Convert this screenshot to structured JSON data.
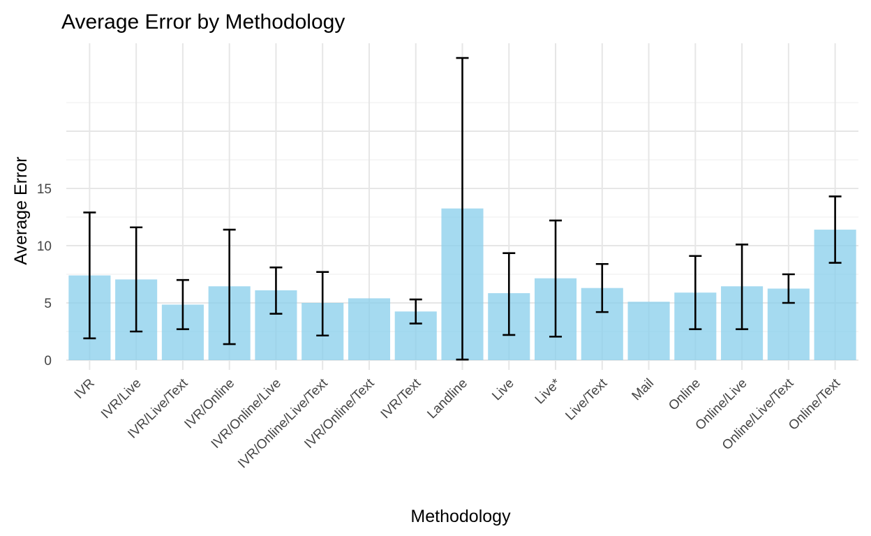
{
  "chart_data": {
    "type": "bar",
    "title": "Average Error by Methodology",
    "xlabel": "Methodology",
    "ylabel": "Average Error",
    "categories": [
      "IVR",
      "IVR/Live",
      "IVR/Live/Text",
      "IVR/Online",
      "IVR/Online/Live",
      "IVR/Online/Live/Text",
      "IVR/Online/Text",
      "IVR/Text",
      "Landline",
      "Live",
      "Live*",
      "Live/Text",
      "Mail",
      "Online",
      "Online/Live",
      "Online/Live/Text",
      "Online/Text"
    ],
    "values": [
      7.4,
      7.05,
      4.85,
      6.45,
      6.1,
      5.0,
      5.4,
      4.25,
      13.25,
      5.85,
      7.15,
      6.3,
      5.1,
      5.9,
      6.45,
      6.25,
      11.4
    ],
    "error_low": [
      1.9,
      2.5,
      2.7,
      1.4,
      4.05,
      2.15,
      null,
      3.2,
      0.05,
      2.2,
      2.05,
      4.2,
      null,
      2.7,
      2.7,
      5.0,
      8.5
    ],
    "error_high": [
      12.9,
      11.6,
      7.0,
      11.4,
      8.1,
      7.7,
      null,
      5.3,
      26.4,
      9.35,
      12.2,
      8.4,
      null,
      9.1,
      10.1,
      7.5,
      14.3
    ],
    "yticks": [
      "0",
      "5",
      "10",
      "15"
    ],
    "ylim": [
      -0.3,
      28
    ],
    "grid": true,
    "bar_color": "#87ceeb",
    "error_color": "#000000"
  }
}
